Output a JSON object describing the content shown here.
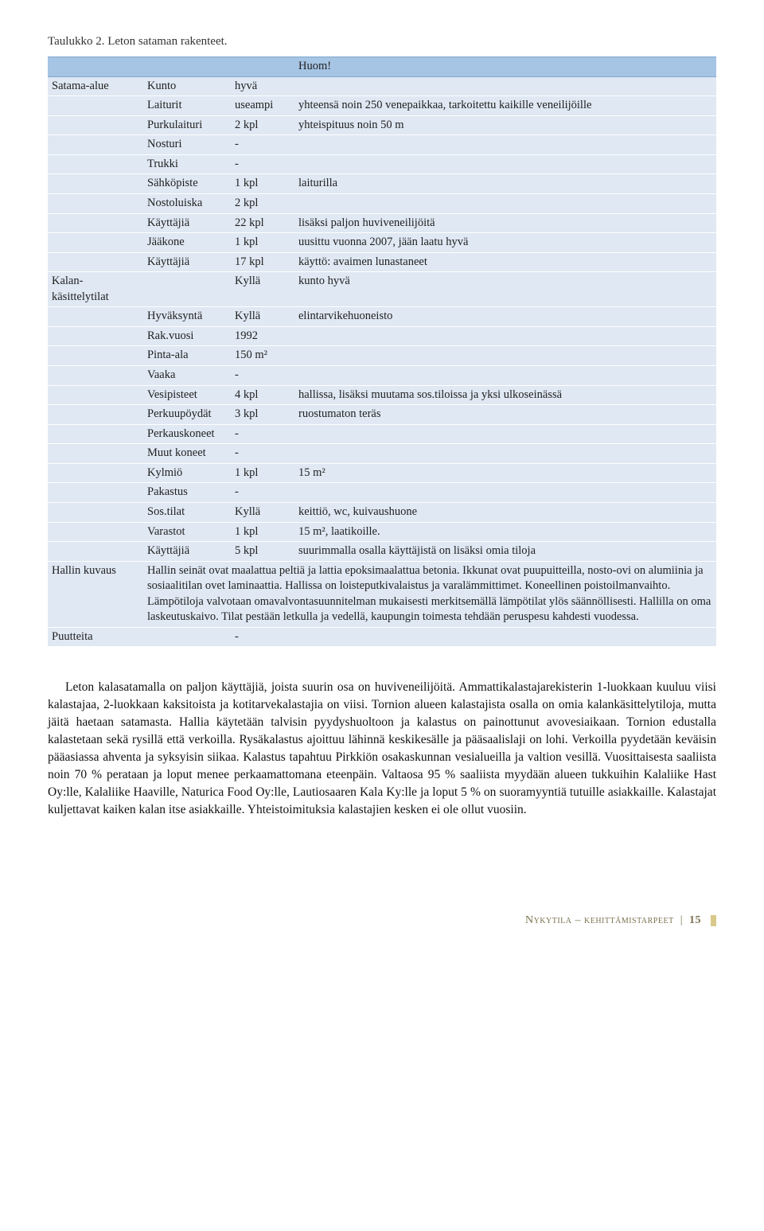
{
  "caption": "Taulukko 2. Leton sataman rakenteet.",
  "header": {
    "c2": "",
    "c3": "",
    "c4": "Huom!"
  },
  "col_widths": [
    "110px",
    "100px",
    "70px",
    "auto"
  ],
  "colors": {
    "header_bg": "#a6c4e4",
    "body_bg": "#dfe8f3",
    "page_bg": "#ffffff",
    "text": "#222222",
    "footer_text": "#7a7350",
    "footer_chip": "#d8c98a"
  },
  "font": {
    "family": "Georgia, 'Times New Roman', serif",
    "table_size": 14.5,
    "body_size": 15.5,
    "caption_size": 15
  },
  "rows": [
    {
      "c0": "Satama-alue",
      "c1": "Kunto",
      "c2": "hyvä",
      "c3": ""
    },
    {
      "c0": "",
      "c1": "Laiturit",
      "c2": "useampi",
      "c3": "yhteensä noin 250 venepaikkaa, tarkoitettu kaikille veneilijöille"
    },
    {
      "c0": "",
      "c1": "Purkulaituri",
      "c2": "2 kpl",
      "c3": "yhteispituus noin 50 m"
    },
    {
      "c0": "",
      "c1": "Nosturi",
      "c2": "-",
      "c3": ""
    },
    {
      "c0": "",
      "c1": "Trukki",
      "c2": "-",
      "c3": ""
    },
    {
      "c0": "",
      "c1": "Sähköpiste",
      "c2": "1 kpl",
      "c3": "laiturilla"
    },
    {
      "c0": "",
      "c1": "Nostoluiska",
      "c2": "2 kpl",
      "c3": ""
    },
    {
      "c0": "",
      "c1": "Käyttäjiä",
      "c2": "22 kpl",
      "c3": "lisäksi paljon huviveneilijöitä"
    },
    {
      "c0": "",
      "c1": "Jääkone",
      "c2": "1 kpl",
      "c3": "uusittu vuonna 2007, jään laatu hyvä"
    },
    {
      "c0": "",
      "c1": "Käyttäjiä",
      "c2": "17 kpl",
      "c3": "käyttö: avaimen lunastaneet"
    },
    {
      "c0": "Kalan-käsittelytilat",
      "c1": "",
      "c2": "Kyllä",
      "c3": "kunto hyvä"
    },
    {
      "c0": "",
      "c1": "Hyväksyntä",
      "c2": "Kyllä",
      "c3": "elintarvikehuoneisto"
    },
    {
      "c0": "",
      "c1": "Rak.vuosi",
      "c2": "1992",
      "c3": ""
    },
    {
      "c0": "",
      "c1": "Pinta-ala",
      "c2": "150 m²",
      "c3": ""
    },
    {
      "c0": "",
      "c1": "Vaaka",
      "c2": "-",
      "c3": ""
    },
    {
      "c0": "",
      "c1": "Vesipisteet",
      "c2": "4 kpl",
      "c3": "hallissa, lisäksi muutama sos.tiloissa ja yksi ulkoseinässä"
    },
    {
      "c0": "",
      "c1": "Perkuupöydät",
      "c2": "3 kpl",
      "c3": "ruostumaton teräs"
    },
    {
      "c0": "",
      "c1": "Perkauskoneet",
      "c2": "-",
      "c3": ""
    },
    {
      "c0": "",
      "c1": "Muut koneet",
      "c2": "-",
      "c3": ""
    },
    {
      "c0": "",
      "c1": "Kylmiö",
      "c2": "1 kpl",
      "c3": "15 m²"
    },
    {
      "c0": "",
      "c1": "Pakastus",
      "c2": "-",
      "c3": ""
    },
    {
      "c0": "",
      "c1": "Sos.tilat",
      "c2": "Kyllä",
      "c3": "keittiö, wc, kuivaushuone"
    },
    {
      "c0": "",
      "c1": "Varastot",
      "c2": "1 kpl",
      "c3": "15 m², laatikoille."
    },
    {
      "c0": "",
      "c1": "Käyttäjiä",
      "c2": "5 kpl",
      "c3": "suurimmalla osalla käyttäjistä on lisäksi omia tiloja"
    },
    {
      "c0": "Hallin kuvaus",
      "colspan": true,
      "c3": "Hallin seinät ovat maalattua peltiä ja lattia epoksimaalattua betonia. Ikkunat ovat puupuitteilla, nosto-ovi on alumiinia ja sosiaalitilan ovet laminaattia. Hallissa on loisteputkivalaistus ja varalämmittimet. Koneellinen poistoilmanvaihto. Lämpötiloja valvotaan omavalvontasuunnitelman mukaisesti merkitsemällä lämpötilat ylös säännöllisesti. Hallilla on oma laskeutuskaivo. Tilat pestään letkulla ja vedellä, kaupungin toimesta tehdään peruspesu kahdesti vuodessa."
    },
    {
      "c0": "Puutteita",
      "c1": "",
      "c2": "-",
      "c3": ""
    }
  ],
  "body_paragraph": "Leton kalasatamalla on paljon käyttäjiä, joista suurin osa on huviveneilijöitä. Ammattikalastajarekisterin 1-luokkaan kuuluu viisi kalastajaa, 2-luokkaan kaksitoista ja kotitarvekalastajia on viisi. Tornion alueen kalastajista osalla on omia kalankäsittelytiloja, mutta jäitä haetaan satamasta. Hallia käytetään talvisin pyydyshuoltoon ja kalastus on painottunut avovesiaikaan. Tornion edustalla kalastetaan sekä rysillä että verkoilla. Rysäkalastus ajoittuu lähinnä keskikesälle ja pääsaalislaji on lohi. Verkoilla pyydetään keväisin pääasiassa ahventa ja syksyisin siikaa. Kalastus tapahtuu Pirkkiön osakaskunnan vesialueilla ja valtion vesillä. Vuosittaisesta saaliista noin 70 % perataan ja loput menee perkaamattomana eteenpäin. Valtaosa 95 % saaliista myydään alueen tukkuihin Kalaliike Hast Oy:lle, Kalaliike Haaville, Naturica Food Oy:lle, Lautiosaaren Kala Ky:lle ja loput 5 % on suoramyyntiä tutuille asiakkaille. Kalastajat kuljettavat kaiken kalan itse asiakkaille. Yhteistoimituksia kalastajien kesken ei ole ollut vuosiin.",
  "footer": {
    "section": "Nykytila – kehittämistarpeet",
    "page": "15"
  }
}
